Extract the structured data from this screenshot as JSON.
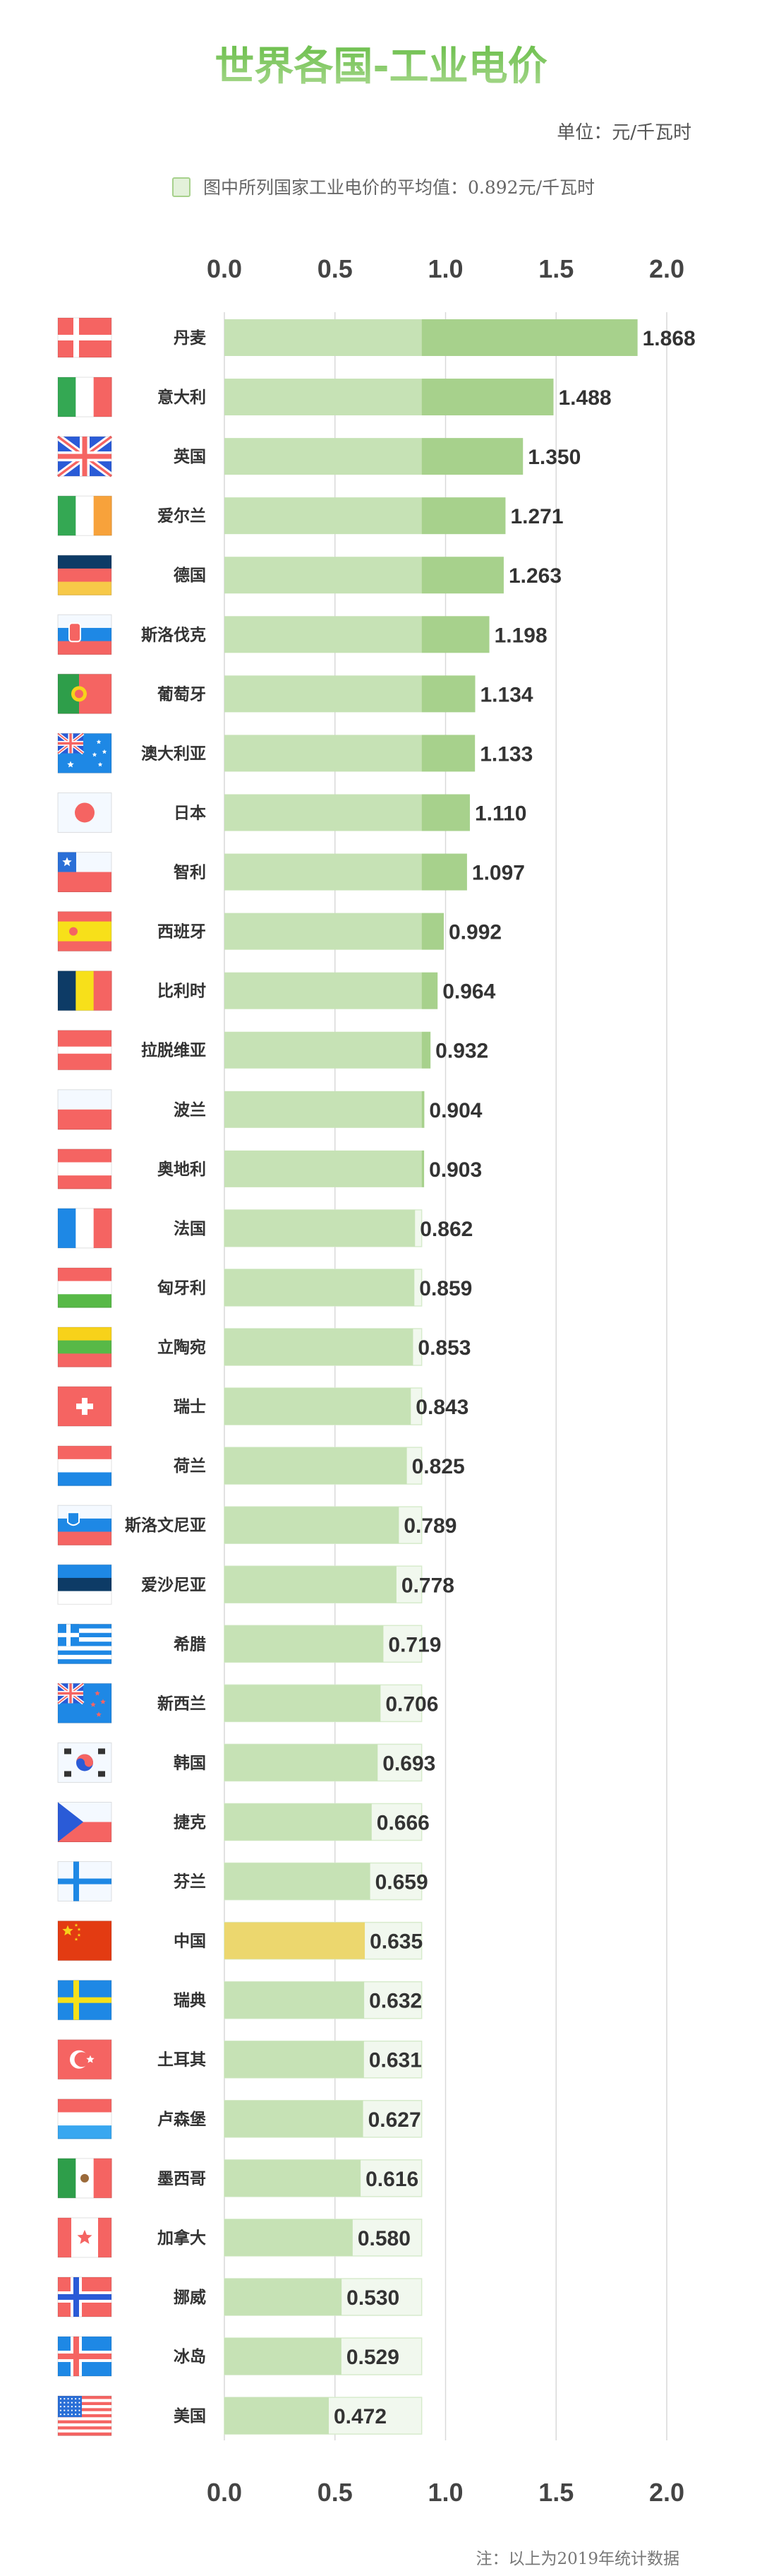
{
  "chart_data": {
    "type": "bar",
    "orientation": "horizontal",
    "title": "世界各国-工业电价",
    "unit": "单位：元/千瓦时",
    "legend": "图中所列国家工业电价的平均值：0.892元/千瓦时",
    "average": 0.892,
    "note": "注：以上为2019年统计数据",
    "xlim": [
      0,
      2.0
    ],
    "xticks": [
      "0.0",
      "0.5",
      "1.0",
      "1.5",
      "2.0"
    ],
    "grid": true,
    "colors": {
      "bar": "#c6e2b5",
      "above_average": "#a7d18c",
      "highlight": "#ecd76e",
      "average_box": "#f1f8ee",
      "title_top": "#6cbf4c",
      "title_bottom": "#a8d88e"
    },
    "highlight_category": "中国",
    "categories": [
      "丹麦",
      "意大利",
      "英国",
      "爱尔兰",
      "德国",
      "斯洛伐克",
      "葡萄牙",
      "澳大利亚",
      "日本",
      "智利",
      "西班牙",
      "比利时",
      "拉脱维亚",
      "波兰",
      "奥地利",
      "法国",
      "匈牙利",
      "立陶宛",
      "瑞士",
      "荷兰",
      "斯洛文尼亚",
      "爱沙尼亚",
      "希腊",
      "新西兰",
      "韩国",
      "捷克",
      "芬兰",
      "中国",
      "瑞典",
      "土耳其",
      "卢森堡",
      "墨西哥",
      "加拿大",
      "挪威",
      "冰岛",
      "美国"
    ],
    "values": [
      1.868,
      1.488,
      1.35,
      1.271,
      1.263,
      1.198,
      1.134,
      1.133,
      1.11,
      1.097,
      0.992,
      0.964,
      0.932,
      0.904,
      0.903,
      0.862,
      0.859,
      0.853,
      0.843,
      0.825,
      0.789,
      0.778,
      0.719,
      0.706,
      0.693,
      0.666,
      0.659,
      0.635,
      0.632,
      0.631,
      0.627,
      0.616,
      0.58,
      0.53,
      0.529,
      0.472
    ],
    "value_labels": [
      "1.868",
      "1.488",
      "1.350",
      "1.271",
      "1.263",
      "1.198",
      "1.134",
      "1.133",
      "1.110",
      "1.097",
      "0.992",
      "0.964",
      "0.932",
      "0.904",
      "0.903",
      "0.862",
      "0.859",
      "0.853",
      "0.843",
      "0.825",
      "0.789",
      "0.778",
      "0.719",
      "0.706",
      "0.693",
      "0.666",
      "0.659",
      "0.635",
      "0.632",
      "0.631",
      "0.627",
      "0.616",
      "0.580",
      "0.530",
      "0.529",
      "0.472"
    ],
    "flag_icons": [
      "denmark",
      "italy",
      "uk",
      "ireland",
      "germany",
      "slovakia",
      "portugal",
      "australia",
      "japan",
      "chile",
      "spain",
      "belgium",
      "latvia",
      "poland",
      "austria",
      "france",
      "hungary",
      "lithuania",
      "switzerland",
      "netherlands",
      "slovenia",
      "estonia",
      "greece",
      "new-zealand",
      "south-korea",
      "czech",
      "finland",
      "china",
      "sweden",
      "turkey",
      "luxembourg",
      "mexico",
      "canada",
      "norway",
      "iceland",
      "usa"
    ]
  }
}
